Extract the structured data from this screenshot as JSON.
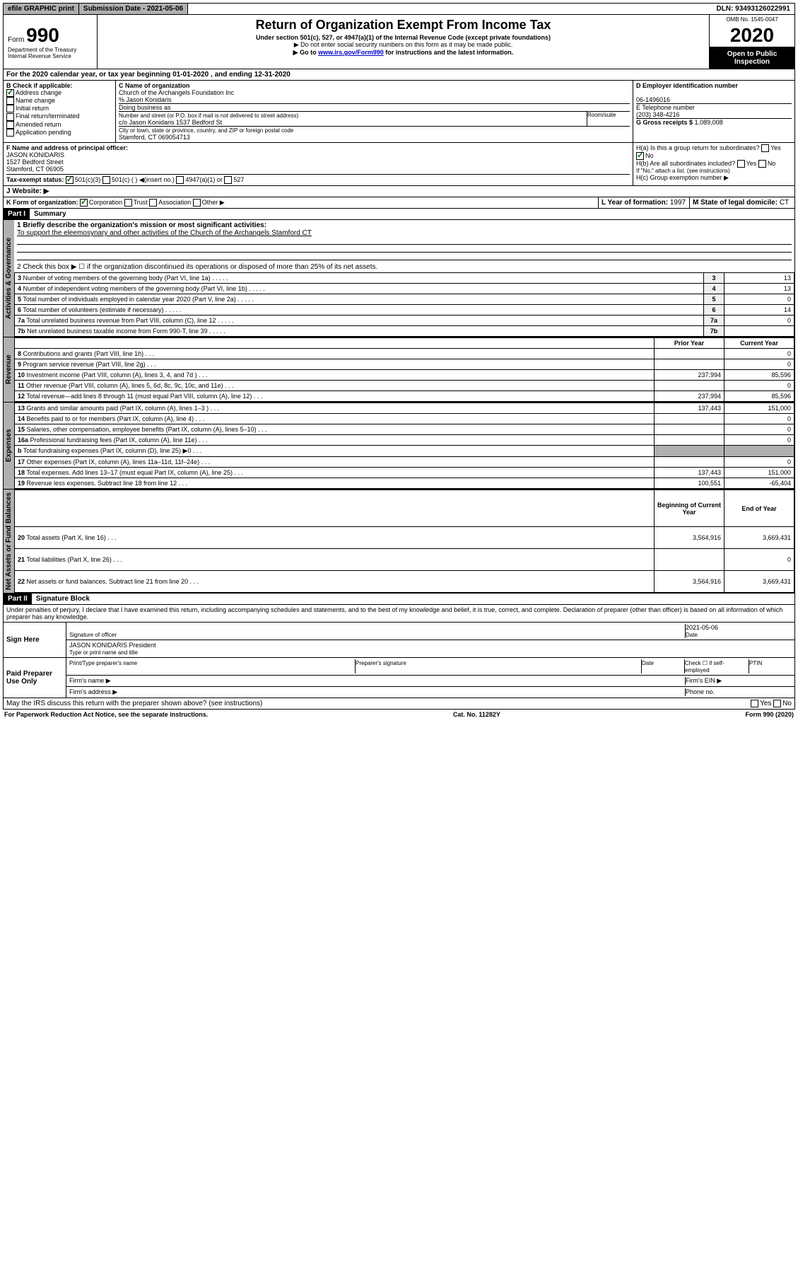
{
  "topbar": {
    "efile": "efile GRAPHIC print",
    "submission": "Submission Date - 2021-05-06",
    "dln": "DLN: 93493126022991"
  },
  "header": {
    "form": "Form",
    "form_no": "990",
    "omb": "OMB No. 1545-0047",
    "title": "Return of Organization Exempt From Income Tax",
    "sub1": "Under section 501(c), 527, or 4947(a)(1) of the Internal Revenue Code (except private foundations)",
    "sub2": "▶ Do not enter social security numbers on this form as it may be made public.",
    "sub3": "▶ Go to www.irs.gov/Form990 for instructions and the latest information.",
    "year": "2020",
    "open": "Open to Public Inspection",
    "dept": "Department of the Treasury Internal Revenue Service"
  },
  "A": {
    "period": "For the 2020 calendar year, or tax year beginning 01-01-2020  , and ending 12-31-2020"
  },
  "B": {
    "title": "Check if applicable:",
    "items": [
      "Address change",
      "Name change",
      "Initial return",
      "Final return/terminated",
      "Amended return",
      "Application pending"
    ],
    "checked": [
      true,
      false,
      false,
      false,
      false,
      false
    ]
  },
  "C": {
    "name_lbl": "C Name of organization",
    "name": "Church of the Archangels Foundation Inc",
    "careof": "% Jason Konidaris",
    "dba_lbl": "Doing business as",
    "dba": "",
    "addr_lbl": "Number and street (or P.O. box if mail is not delivered to street address)",
    "room_lbl": "Room/suite",
    "addr": "c/o Jason Konidaris 1537 Bedford St",
    "city_lbl": "City or town, state or province, country, and ZIP or foreign postal code",
    "city": "Stamford, CT  069054713"
  },
  "D": {
    "lbl": "D Employer identification number",
    "val": "06-1496016"
  },
  "E": {
    "lbl": "E Telephone number",
    "val": "(203) 348-4216"
  },
  "G": {
    "lbl": "G Gross receipts $",
    "val": "1,089,008"
  },
  "F": {
    "lbl": "F  Name and address of principal officer:",
    "name": "JASON KONIDARIS",
    "addr1": "1527 Bedford Street",
    "addr2": "Stamford, CT  06905"
  },
  "H": {
    "a": "H(a)  Is this a group return for subordinates?",
    "a_yes": "Yes",
    "a_no": "No",
    "b": "H(b)  Are all subordinates included?",
    "b_yes": "Yes",
    "b_no": "No",
    "b_note": "If \"No,\" attach a list. (see instructions)",
    "c": "H(c)  Group exemption number ▶"
  },
  "I": {
    "lbl": "Tax-exempt status:",
    "opts": [
      "501(c)(3)",
      "501(c) (  ) ◀(insert no.)",
      "4947(a)(1) or",
      "527"
    ],
    "checked": [
      true,
      false,
      false,
      false
    ]
  },
  "J": {
    "lbl": "J  Website: ▶"
  },
  "K": {
    "lbl": "K Form of organization:",
    "opts": [
      "Corporation",
      "Trust",
      "Association",
      "Other ▶"
    ],
    "checked": [
      true,
      false,
      false,
      false
    ]
  },
  "L": {
    "lbl": "L Year of formation:",
    "val": "1997"
  },
  "M": {
    "lbl": "M State of legal domicile:",
    "val": "CT"
  },
  "part1": {
    "hdr": "Part I",
    "title": "Summary"
  },
  "summary": {
    "briefly": "1  Briefly describe the organization's mission or most significant activities:",
    "mission": "To support the eleemosynary and other activities of the Church of the Archangels Stamford CT",
    "line2": "2  Check this box ▶ ☐  if the organization discontinued its operations or disposed of more than 25% of its net assets.",
    "gov_rows": [
      {
        "n": "3",
        "t": "Number of voting members of the governing body (Part VI, line 1a)",
        "v": "13"
      },
      {
        "n": "4",
        "t": "Number of independent voting members of the governing body (Part VI, line 1b)",
        "v": "13"
      },
      {
        "n": "5",
        "t": "Total number of individuals employed in calendar year 2020 (Part V, line 2a)",
        "v": "0"
      },
      {
        "n": "6",
        "t": "Total number of volunteers (estimate if necessary)",
        "v": "14"
      },
      {
        "n": "7a",
        "t": "Total unrelated business revenue from Part VIII, column (C), line 12",
        "v": "0"
      },
      {
        "n": "7b",
        "t": "Net unrelated business taxable income from Form 990-T, line 39",
        "v": ""
      }
    ],
    "colhdr": {
      "prior": "Prior Year",
      "current": "Current Year"
    },
    "rev_rows": [
      {
        "n": "8",
        "t": "Contributions and grants (Part VIII, line 1h)",
        "p": "",
        "c": "0"
      },
      {
        "n": "9",
        "t": "Program service revenue (Part VIII, line 2g)",
        "p": "",
        "c": "0"
      },
      {
        "n": "10",
        "t": "Investment income (Part VIII, column (A), lines 3, 4, and 7d )",
        "p": "237,994",
        "c": "85,596"
      },
      {
        "n": "11",
        "t": "Other revenue (Part VIII, column (A), lines 5, 6d, 8c, 9c, 10c, and 11e)",
        "p": "",
        "c": "0"
      },
      {
        "n": "12",
        "t": "Total revenue—add lines 8 through 11 (must equal Part VIII, column (A), line 12)",
        "p": "237,994",
        "c": "85,596"
      }
    ],
    "exp_rows": [
      {
        "n": "13",
        "t": "Grants and similar amounts paid (Part IX, column (A), lines 1–3 )",
        "p": "137,443",
        "c": "151,000"
      },
      {
        "n": "14",
        "t": "Benefits paid to or for members (Part IX, column (A), line 4)",
        "p": "",
        "c": "0"
      },
      {
        "n": "15",
        "t": "Salaries, other compensation, employee benefits (Part IX, column (A), lines 5–10)",
        "p": "",
        "c": "0"
      },
      {
        "n": "16a",
        "t": "Professional fundraising fees (Part IX, column (A), line 11e)",
        "p": "",
        "c": "0"
      },
      {
        "n": "b",
        "t": "Total fundraising expenses (Part IX, column (D), line 25) ▶0",
        "p": "—gray—",
        "c": "—gray—"
      },
      {
        "n": "17",
        "t": "Other expenses (Part IX, column (A), lines 11a–11d, 11f–24e)",
        "p": "",
        "c": "0"
      },
      {
        "n": "18",
        "t": "Total expenses. Add lines 13–17 (must equal Part IX, column (A), line 25)",
        "p": "137,443",
        "c": "151,000"
      },
      {
        "n": "19",
        "t": "Revenue less expenses. Subtract line 18 from line 12",
        "p": "100,551",
        "c": "-65,404"
      }
    ],
    "bal_hdr": {
      "prior": "Beginning of Current Year",
      "current": "End of Year"
    },
    "bal_rows": [
      {
        "n": "20",
        "t": "Total assets (Part X, line 16)",
        "p": "3,564,916",
        "c": "3,669,431"
      },
      {
        "n": "21",
        "t": "Total liabilities (Part X, line 26)",
        "p": "",
        "c": "0"
      },
      {
        "n": "22",
        "t": "Net assets or fund balances. Subtract line 21 from line 20",
        "p": "3,564,916",
        "c": "3,669,431"
      }
    ],
    "vlabels": {
      "act": "Activities & Governance",
      "rev": "Revenue",
      "exp": "Expenses",
      "net": "Net Assets or Fund Balances"
    }
  },
  "part2": {
    "hdr": "Part II",
    "title": "Signature Block",
    "perjury": "Under penalties of perjury, I declare that I have examined this return, including accompanying schedules and statements, and to the best of my knowledge and belief, it is true, correct, and complete. Declaration of preparer (other than officer) is based on all information of which preparer has any knowledge."
  },
  "sign": {
    "here": "Sign Here",
    "sig_officer": "Signature of officer",
    "date": "2021-05-06",
    "date_lbl": "Date",
    "name": "JASON KONIDARIS President",
    "name_lbl": "Type or print name and title"
  },
  "paid": {
    "lbl": "Paid Preparer Use Only",
    "h1": "Print/Type preparer's name",
    "h2": "Preparer's signature",
    "h3": "Date",
    "h4": "Check ☐ if self-employed",
    "h5": "PTIN",
    "firm_name": "Firm's name  ▶",
    "firm_ein": "Firm's EIN ▶",
    "firm_addr": "Firm's address ▶",
    "phone": "Phone no."
  },
  "discuss": {
    "t": "May the IRS discuss this return with the preparer shown above? (see instructions)",
    "yes": "Yes",
    "no": "No"
  },
  "footer": {
    "left": "For Paperwork Reduction Act Notice, see the separate instructions.",
    "mid": "Cat. No. 11282Y",
    "right": "Form 990 (2020)"
  }
}
